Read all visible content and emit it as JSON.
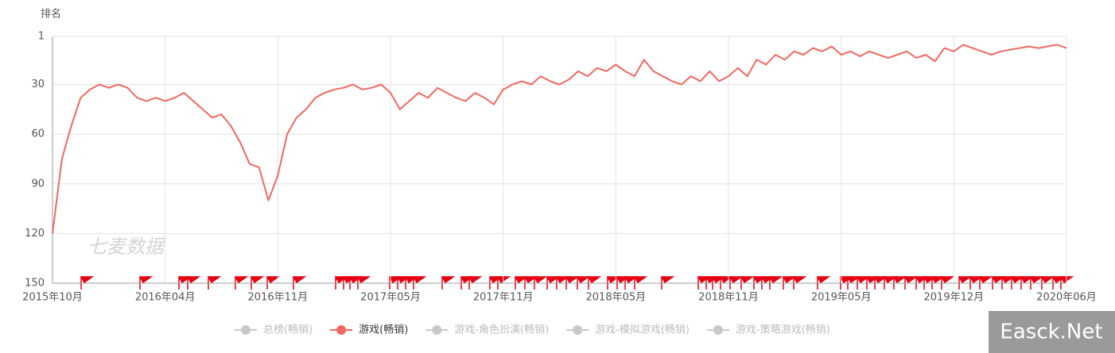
{
  "chart_data": {
    "type": "line",
    "y_axis_label": "排名",
    "watermark": "七麦数据",
    "badge": "Easck.Net",
    "categories": [
      "2015年10月",
      null,
      null,
      null,
      null,
      null,
      null,
      null,
      null,
      null,
      null,
      null,
      "2016年04月",
      null,
      null,
      null,
      null,
      null,
      null,
      null,
      null,
      null,
      null,
      null,
      "2016年11月",
      null,
      null,
      null,
      null,
      null,
      null,
      null,
      null,
      null,
      null,
      null,
      "2017年05月",
      null,
      null,
      null,
      null,
      null,
      null,
      null,
      null,
      null,
      null,
      null,
      "2017年11月",
      null,
      null,
      null,
      null,
      null,
      null,
      null,
      null,
      null,
      null,
      null,
      "2018年05月",
      null,
      null,
      null,
      null,
      null,
      null,
      null,
      null,
      null,
      null,
      null,
      "2018年11月",
      null,
      null,
      null,
      null,
      null,
      null,
      null,
      null,
      null,
      null,
      null,
      "2019年05月",
      null,
      null,
      null,
      null,
      null,
      null,
      null,
      null,
      null,
      null,
      null,
      "2019年12月",
      null,
      null,
      null,
      null,
      null,
      null,
      null,
      null,
      null,
      null,
      null,
      "2020年06月"
    ],
    "series": [
      {
        "name": "游戏(畅销)",
        "color": "#f0685f",
        "values": [
          120,
          75,
          55,
          38,
          33,
          30,
          32,
          30,
          32,
          38,
          40,
          38,
          40,
          38,
          35,
          40,
          45,
          50,
          48,
          55,
          65,
          78,
          80,
          100,
          85,
          60,
          50,
          45,
          38,
          35,
          33,
          32,
          30,
          33,
          32,
          30,
          35,
          45,
          40,
          35,
          38,
          32,
          35,
          38,
          40,
          35,
          38,
          42,
          33,
          30,
          28,
          30,
          25,
          28,
          30,
          27,
          22,
          25,
          20,
          22,
          18,
          22,
          25,
          15,
          22,
          25,
          28,
          30,
          25,
          28,
          22,
          28,
          25,
          20,
          25,
          15,
          18,
          12,
          15,
          10,
          12,
          8,
          10,
          7,
          12,
          10,
          13,
          10,
          12,
          14,
          12,
          10,
          14,
          12,
          16,
          8,
          10,
          6,
          8,
          10,
          12,
          10,
          9,
          8,
          7,
          8,
          7,
          6,
          8
        ]
      }
    ],
    "hidden_series": [
      {
        "name": "总榜(畅销)",
        "color": "#c8c8c8"
      },
      {
        "name": "游戏-角色扮演(畅销)",
        "color": "#c8c8c8"
      },
      {
        "name": "游戏-模拟游戏(畅销)",
        "color": "#c8c8c8"
      },
      {
        "name": "游戏-策略游戏(畅销)",
        "color": "#c8c8c8"
      }
    ],
    "ylim": [
      1,
      150
    ],
    "yticks": [
      1,
      30,
      60,
      90,
      120,
      150
    ],
    "y_inverted": true,
    "grid": true
  }
}
